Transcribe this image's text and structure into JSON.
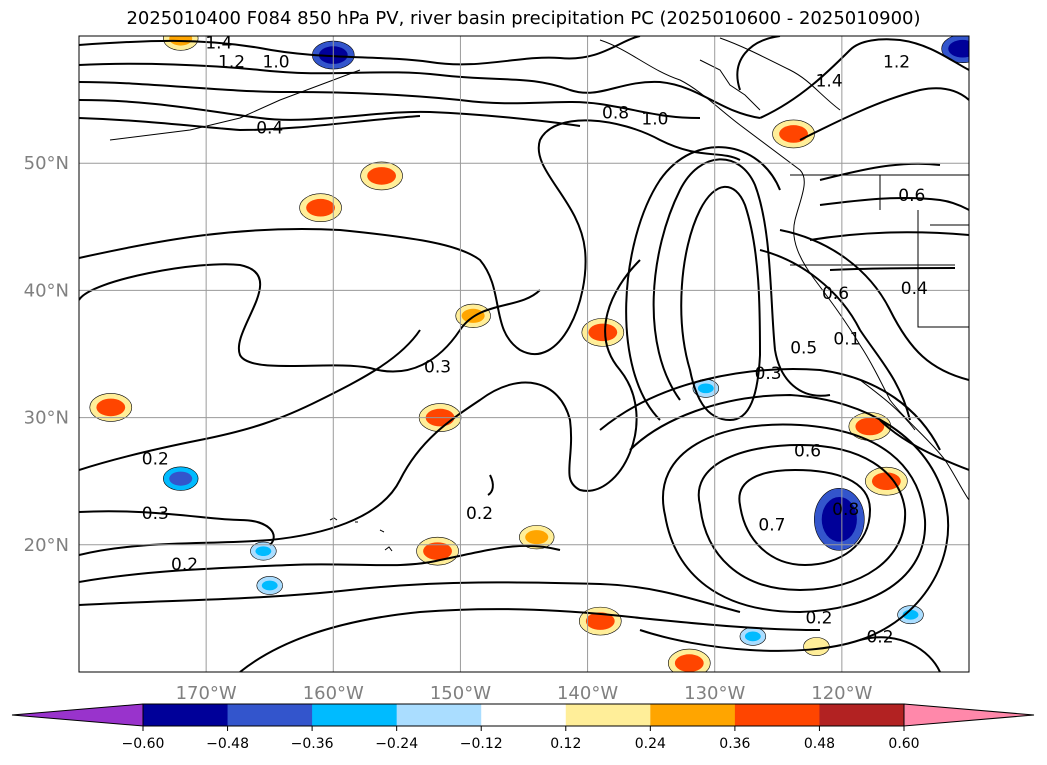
{
  "chart_data": {
    "type": "contour map",
    "title": "2025010400 F084 850 hPa PV, river basin precipitation PC (2025010600 - 2025010900)",
    "xlim": [
      -180,
      -110
    ],
    "ylim": [
      10,
      60
    ],
    "grid": true,
    "x_ticks": [
      "170°W",
      "160°W",
      "150°W",
      "140°W",
      "130°W",
      "120°W"
    ],
    "x_tick_values": [
      -170,
      -160,
      -150,
      -140,
      -130,
      -120
    ],
    "y_ticks": [
      "50°N",
      "40°N",
      "30°N",
      "20°N"
    ],
    "y_tick_values": [
      50,
      40,
      30,
      20
    ],
    "contour_labels": [
      {
        "text": "1.4",
        "lon": -169,
        "lat": 59.5
      },
      {
        "text": "1.2",
        "lon": -168,
        "lat": 58.0
      },
      {
        "text": "1.0",
        "lon": -164.5,
        "lat": 58.0
      },
      {
        "text": "0.4",
        "lon": -165,
        "lat": 52.8
      },
      {
        "text": "0.8",
        "lon": -137.8,
        "lat": 54.0
      },
      {
        "text": "1.0",
        "lon": -134.7,
        "lat": 53.5
      },
      {
        "text": "1.4",
        "lon": -121,
        "lat": 56.5
      },
      {
        "text": "1.2",
        "lon": -115.7,
        "lat": 58.0
      },
      {
        "text": "0.6",
        "lon": -114.5,
        "lat": 47.5
      },
      {
        "text": "0.4",
        "lon": -114.3,
        "lat": 40.2
      },
      {
        "text": "0.6",
        "lon": -120.5,
        "lat": 39.8
      },
      {
        "text": "0.1",
        "lon": -119.6,
        "lat": 36.2
      },
      {
        "text": "0.5",
        "lon": -123,
        "lat": 35.5
      },
      {
        "text": "0.3",
        "lon": -125.8,
        "lat": 33.5
      },
      {
        "text": "0.3",
        "lon": -151.8,
        "lat": 34.0
      },
      {
        "text": "0.2",
        "lon": -174,
        "lat": 26.8
      },
      {
        "text": "0.3",
        "lon": -174,
        "lat": 22.5
      },
      {
        "text": "0.2",
        "lon": -171.7,
        "lat": 18.5
      },
      {
        "text": "0.2",
        "lon": -148.5,
        "lat": 22.5
      },
      {
        "text": "0.6",
        "lon": -122.7,
        "lat": 27.4
      },
      {
        "text": "0.7",
        "lon": -125.5,
        "lat": 21.6
      },
      {
        "text": "0.8",
        "lon": -119.7,
        "lat": 22.8
      },
      {
        "text": "0.2",
        "lon": -121.8,
        "lat": 14.3
      },
      {
        "text": "0.2",
        "lon": -117.0,
        "lat": 12.8
      }
    ],
    "colorbar": {
      "boundaries": [
        -0.6,
        -0.48,
        -0.36,
        -0.24,
        -0.12,
        0.12,
        0.24,
        0.36,
        0.48,
        0.6
      ],
      "tick_labels": [
        "−0.60",
        "−0.48",
        "−0.36",
        "−0.24",
        "−0.12",
        "0.12",
        "0.24",
        "0.36",
        "0.48",
        "0.60"
      ],
      "colors": [
        "#9933cc",
        "#000099",
        "#3355cc",
        "#00bbff",
        "#aaddff",
        "#ffffff",
        "#ffee99",
        "#ffa500",
        "#ff4500",
        "#b22222",
        "#ff88aa"
      ],
      "extend": "both"
    },
    "precip_patches": [
      {
        "lon": -160,
        "lat": 58.5,
        "class": "negative",
        "strength": "strong"
      },
      {
        "lon": -110.5,
        "lat": 59,
        "class": "negative",
        "strength": "strong"
      },
      {
        "lon": -120.2,
        "lat": 22,
        "class": "negative",
        "strength": "strong"
      },
      {
        "lon": -172,
        "lat": 25.2,
        "class": "negative",
        "strength": "medium"
      },
      {
        "lon": -165,
        "lat": 16.8,
        "class": "negative",
        "strength": "weak"
      },
      {
        "lon": -165.5,
        "lat": 19.5,
        "class": "negative",
        "strength": "weak"
      },
      {
        "lon": -130.7,
        "lat": 32.3,
        "class": "negative",
        "strength": "weak"
      },
      {
        "lon": -114.6,
        "lat": 14.5,
        "class": "negative",
        "strength": "weak"
      },
      {
        "lon": -127.0,
        "lat": 12.8,
        "class": "negative",
        "strength": "weak"
      },
      {
        "lon": -123.8,
        "lat": 52.3,
        "class": "positive",
        "strength": "strong"
      },
      {
        "lon": -161,
        "lat": 46.5,
        "class": "positive",
        "strength": "strong"
      },
      {
        "lon": -156.2,
        "lat": 49.0,
        "class": "positive",
        "strength": "strong"
      },
      {
        "lon": -177.5,
        "lat": 30.8,
        "class": "positive",
        "strength": "strong"
      },
      {
        "lon": -117.8,
        "lat": 29.3,
        "class": "positive",
        "strength": "strong"
      },
      {
        "lon": -116.5,
        "lat": 25.0,
        "class": "positive",
        "strength": "strong"
      },
      {
        "lon": -151.6,
        "lat": 30.0,
        "class": "positive",
        "strength": "strong"
      },
      {
        "lon": -138.8,
        "lat": 36.7,
        "class": "positive",
        "strength": "strong"
      },
      {
        "lon": -149.0,
        "lat": 38.0,
        "class": "positive",
        "strength": "medium"
      },
      {
        "lon": -144.0,
        "lat": 20.6,
        "class": "positive",
        "strength": "medium"
      },
      {
        "lon": -151.8,
        "lat": 19.5,
        "class": "positive",
        "strength": "strong"
      },
      {
        "lon": -139.0,
        "lat": 14.0,
        "class": "positive",
        "strength": "strong"
      },
      {
        "lon": -132.0,
        "lat": 10.7,
        "class": "positive",
        "strength": "strong"
      },
      {
        "lon": -172.0,
        "lat": 59.8,
        "class": "positive",
        "strength": "medium"
      },
      {
        "lon": -122.0,
        "lat": 12.0,
        "class": "positive",
        "strength": "weak"
      }
    ]
  }
}
